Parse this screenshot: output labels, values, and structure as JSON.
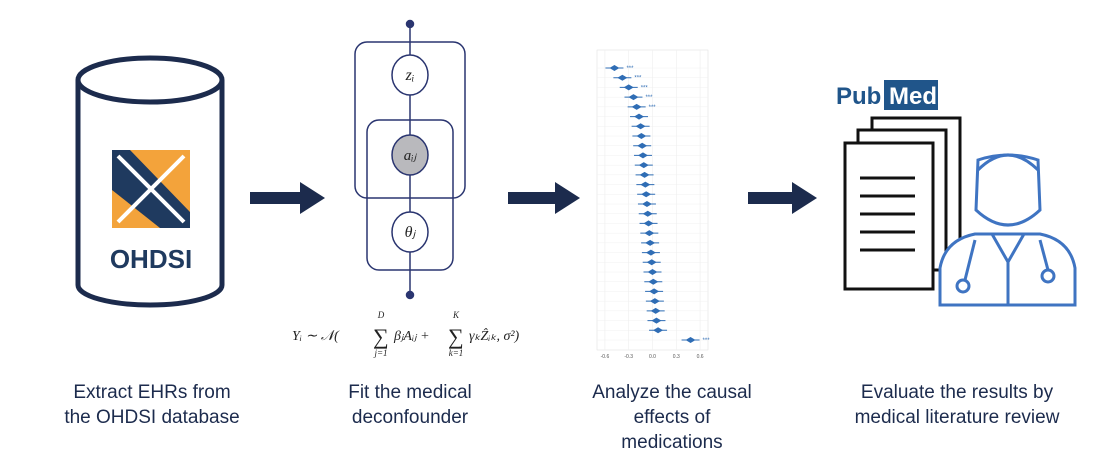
{
  "steps": [
    {
      "caption": [
        "Extract EHRs from",
        "the OHDSI database"
      ],
      "logo": "OHDSI"
    },
    {
      "caption": [
        "Fit the medical",
        "deconfounder"
      ],
      "nodes": [
        {
          "label": "zᵢ"
        },
        {
          "label": "aᵢⱼ"
        },
        {
          "label": "θⱼ"
        }
      ],
      "formula": {
        "lhs": "Yᵢ ∼ 𝒩(",
        "sum1": "∑",
        "sum1_lower": "j=1",
        "sum1_upper": "D",
        "term1": "βⱼAᵢⱼ +",
        "sum2": "∑",
        "sum2_lower": "k=1",
        "sum2_upper": "K",
        "term2": "γₖẐᵢₖ, σ²)"
      }
    },
    {
      "caption": [
        "Analyze the causal",
        "effects of",
        "medications"
      ],
      "forest_plot": {
        "xlim": [
          -0.7,
          0.7
        ],
        "xticks": [
          -0.6,
          -0.3,
          {
            "value": 0,
            "label": "0.0"
          },
          0.3,
          0.6
        ],
        "estimates": [
          {
            "value": -0.48,
            "label": "***"
          },
          {
            "value": -0.38,
            "label": "***"
          },
          {
            "value": -0.3,
            "label": "***"
          },
          {
            "value": -0.24,
            "label": "***"
          },
          {
            "value": -0.2,
            "label": "***"
          },
          {
            "value": -0.17
          },
          {
            "value": -0.15
          },
          {
            "value": -0.14
          },
          {
            "value": -0.13
          },
          {
            "value": -0.12
          },
          {
            "value": -0.11
          },
          {
            "value": -0.1
          },
          {
            "value": -0.09
          },
          {
            "value": -0.08
          },
          {
            "value": -0.07
          },
          {
            "value": -0.06
          },
          {
            "value": -0.05
          },
          {
            "value": -0.04
          },
          {
            "value": -0.03
          },
          {
            "value": -0.02
          },
          {
            "value": -0.01
          },
          {
            "value": 0
          },
          {
            "value": 0.01
          },
          {
            "value": 0.02
          },
          {
            "value": 0.03
          },
          {
            "value": 0.04
          },
          {
            "value": 0.05
          },
          {
            "value": 0.07
          },
          {
            "value": 0.48,
            "label": "***"
          }
        ]
      }
    },
    {
      "caption": [
        "Evaluate the results by",
        "medical literature review"
      ],
      "logo": {
        "pub": "Pub",
        "med": "Med"
      }
    }
  ]
}
